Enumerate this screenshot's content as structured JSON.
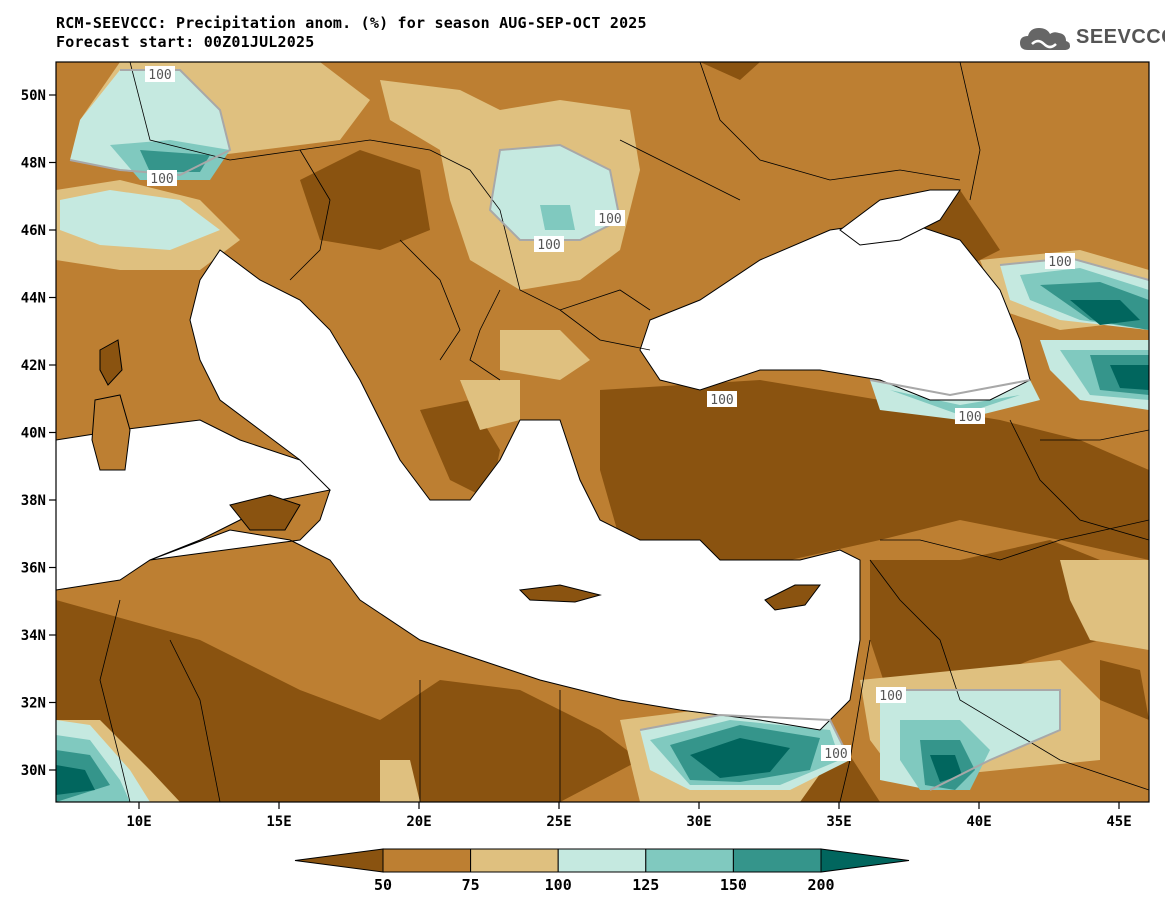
{
  "header": {
    "title_line1": "RCM-SEEVCCC: Precipitation anom. (%) for season AUG-SEP-OCT 2025",
    "title_line2": "Forecast start: 00Z01JUL2025",
    "logo_text": "SEEVCCC",
    "logo_icon": "cloud-icon"
  },
  "map": {
    "x_ticks": [
      "10E",
      "15E",
      "20E",
      "25E",
      "30E",
      "35E",
      "40E",
      "45E"
    ],
    "y_ticks": [
      "50N",
      "48N",
      "46N",
      "44N",
      "42N",
      "40N",
      "38N",
      "36N",
      "34N",
      "32N",
      "30N"
    ],
    "contour_label": "100"
  },
  "colorbar": {
    "bins": [
      {
        "color": "#8a5310"
      },
      {
        "color": "#bd7f32"
      },
      {
        "color": "#dfc07f"
      },
      {
        "color": "#c5e9e0"
      },
      {
        "color": "#80c9bf"
      },
      {
        "color": "#35958b"
      },
      {
        "color": "#01665e"
      }
    ],
    "labels": [
      "50",
      "75",
      "100",
      "125",
      "150",
      "200"
    ]
  },
  "colors": {
    "very_dry": "#8a5310",
    "dry": "#bd7f32",
    "slightly_dry": "#dfc07f",
    "slightly_wet": "#c5e9e0",
    "wet": "#80c9bf",
    "very_wet": "#35958b",
    "extreme_wet": "#01665e",
    "sea": "#ffffff"
  }
}
